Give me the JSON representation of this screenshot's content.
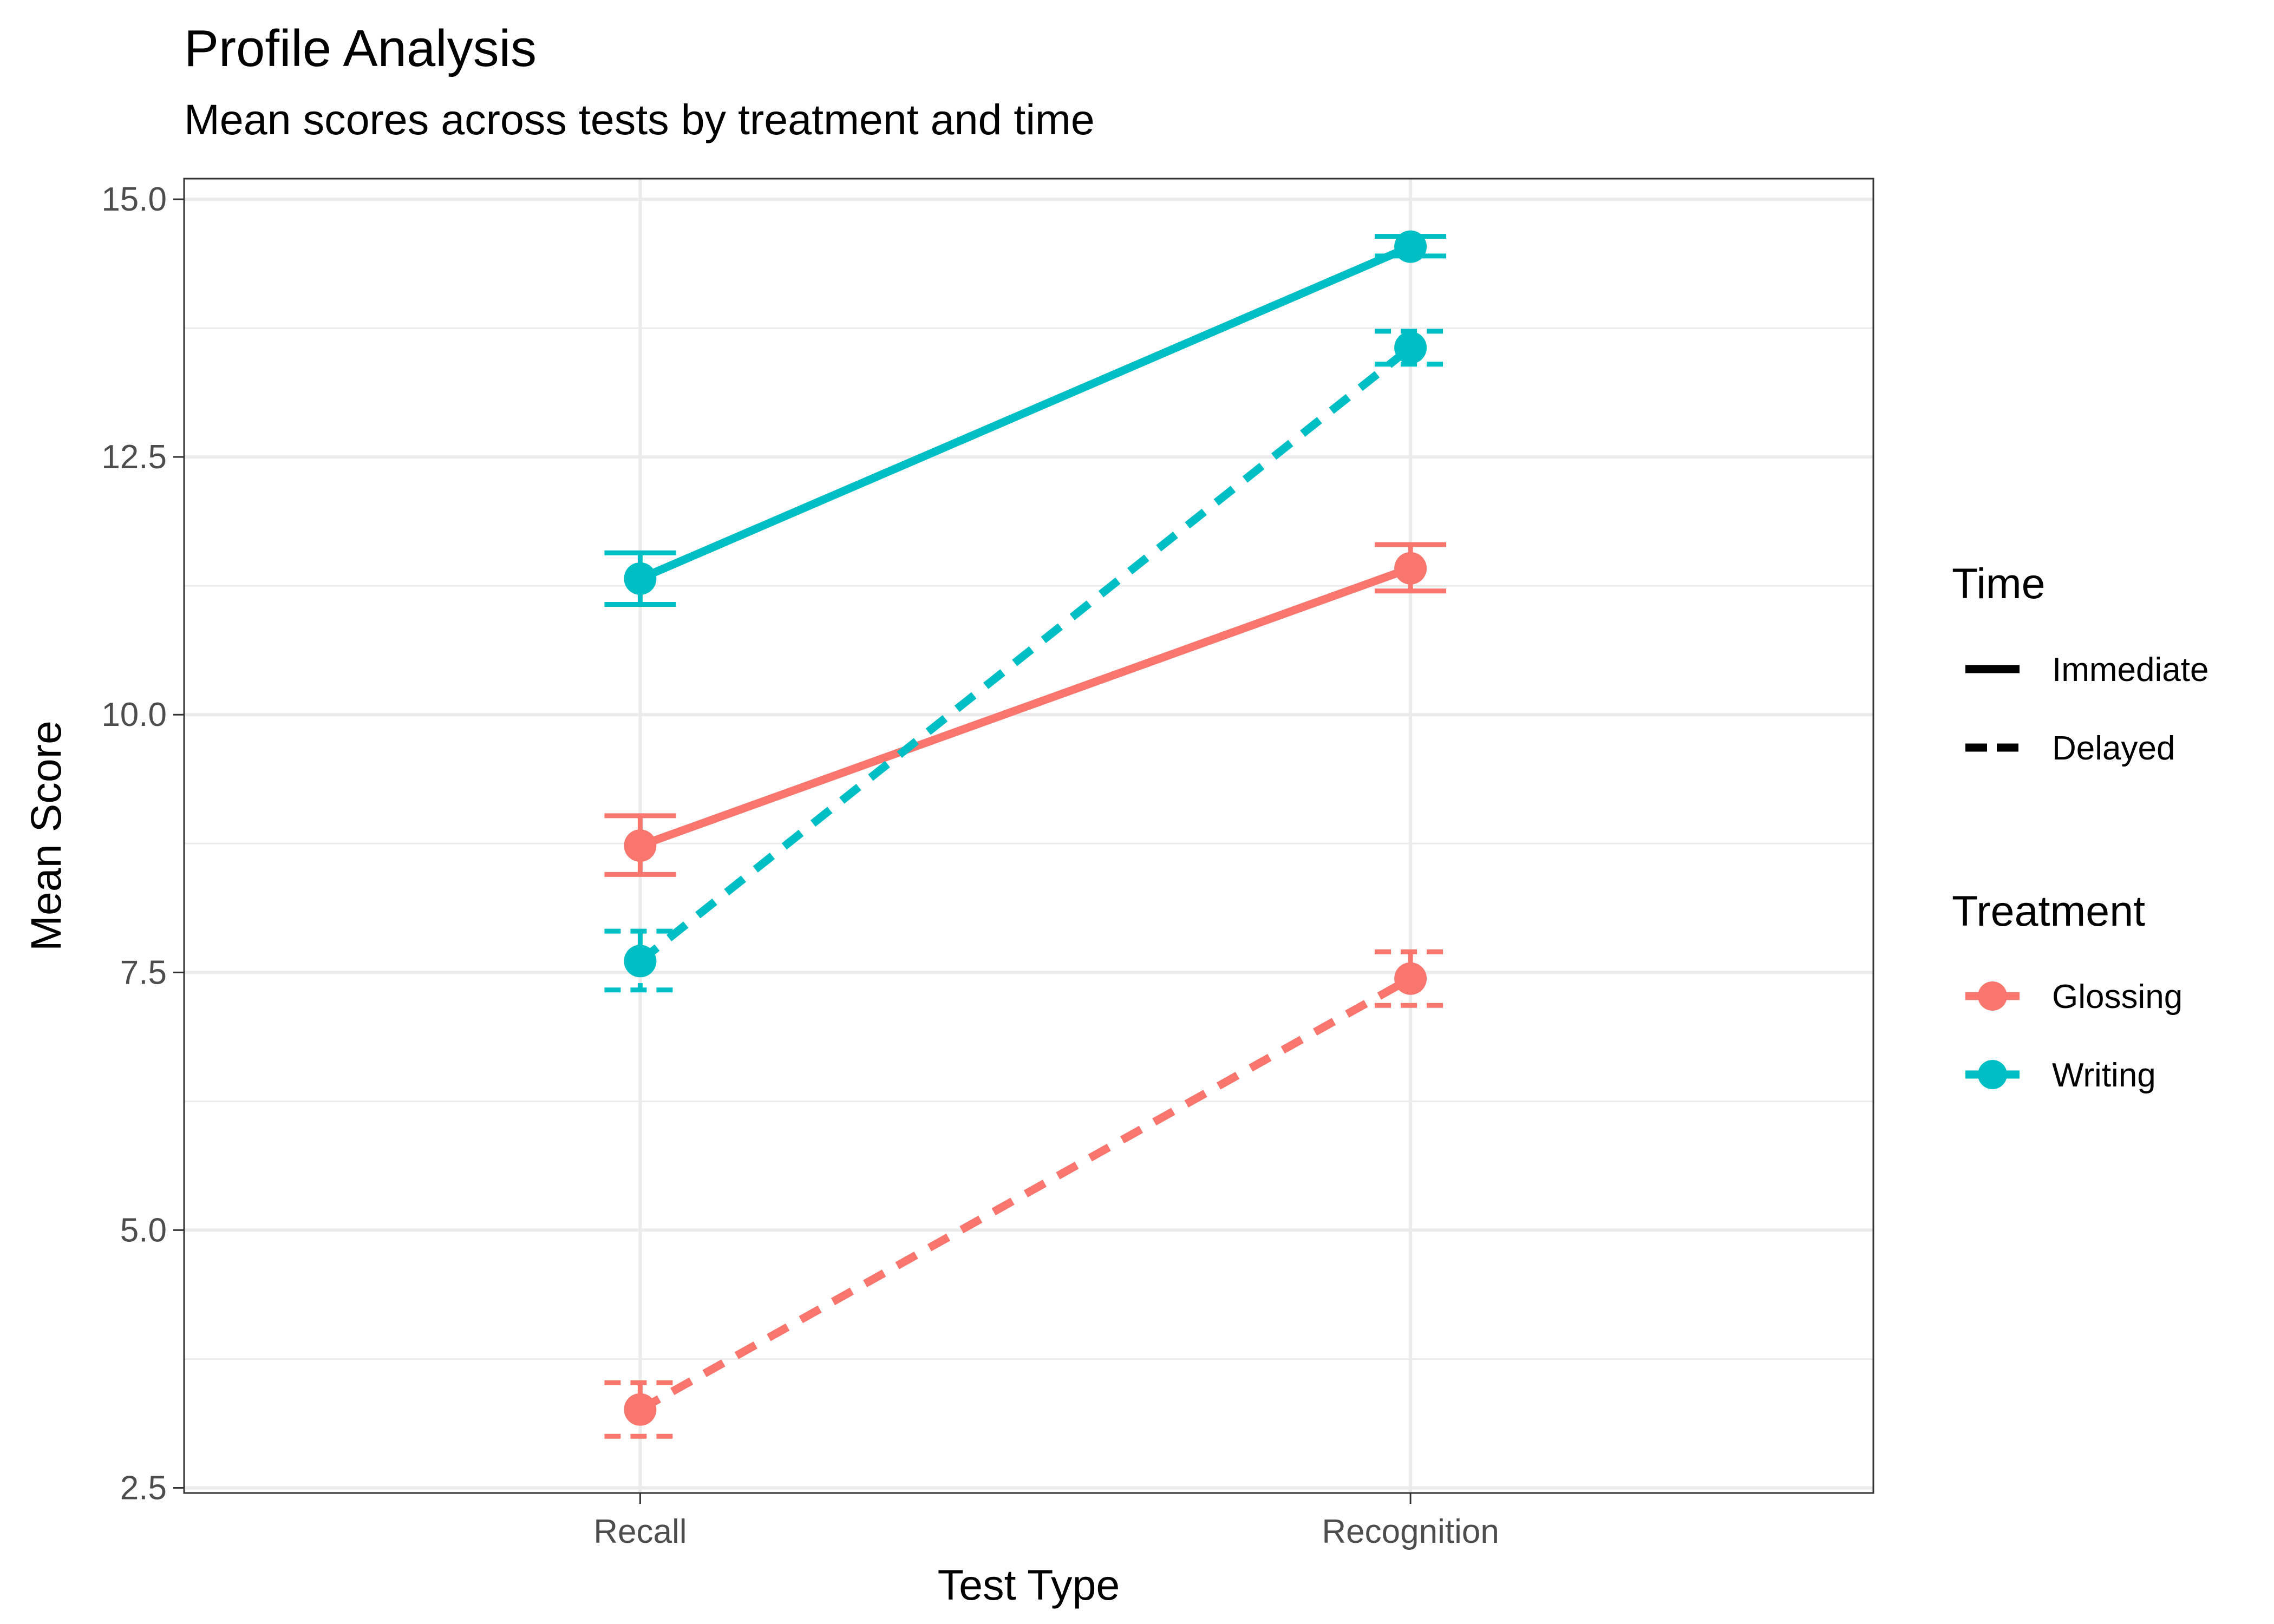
{
  "title": "Profile Analysis",
  "subtitle": "Mean scores across tests by treatment and time",
  "chart_data": {
    "type": "line",
    "title": "Profile Analysis",
    "subtitle": "Mean scores across tests by treatment and time",
    "xlabel": "Test Type",
    "ylabel": "Mean Score",
    "categories": [
      "Recall",
      "Recognition"
    ],
    "ylim": [
      2.45,
      15.2
    ],
    "yticks": [
      2.5,
      5.0,
      7.5,
      10.0,
      12.5,
      15.0
    ],
    "ytick_labels": [
      "2.5",
      "5.0",
      "7.5",
      "10.0",
      "12.5",
      "15.0"
    ],
    "grid": true,
    "series": [
      {
        "treatment": "Glossing",
        "time": "Immediate",
        "color": "#F8766D",
        "dash": "solid",
        "values": [
          8.73,
          11.42
        ],
        "error_low": [
          8.45,
          11.2
        ],
        "error_high": [
          9.02,
          11.65
        ]
      },
      {
        "treatment": "Glossing",
        "time": "Delayed",
        "color": "#F8766D",
        "dash": "dashed",
        "values": [
          3.26,
          7.44
        ],
        "error_low": [
          3.0,
          7.18
        ],
        "error_high": [
          3.52,
          7.7
        ]
      },
      {
        "treatment": "Writing",
        "time": "Immediate",
        "color": "#00BFC4",
        "dash": "solid",
        "values": [
          11.32,
          14.54
        ],
        "error_low": [
          11.07,
          14.45
        ],
        "error_high": [
          11.57,
          14.64
        ]
      },
      {
        "treatment": "Writing",
        "time": "Delayed",
        "color": "#00BFC4",
        "dash": "dashed",
        "values": [
          7.61,
          13.56
        ],
        "error_low": [
          7.33,
          13.4
        ],
        "error_high": [
          7.9,
          13.72
        ]
      }
    ],
    "legend": {
      "position": "right",
      "time": {
        "title": "Time",
        "items": [
          "Immediate",
          "Delayed"
        ]
      },
      "treatment": {
        "title": "Treatment",
        "items": [
          {
            "label": "Glossing",
            "color": "#F8766D"
          },
          {
            "label": "Writing",
            "color": "#00BFC4"
          }
        ]
      }
    }
  }
}
